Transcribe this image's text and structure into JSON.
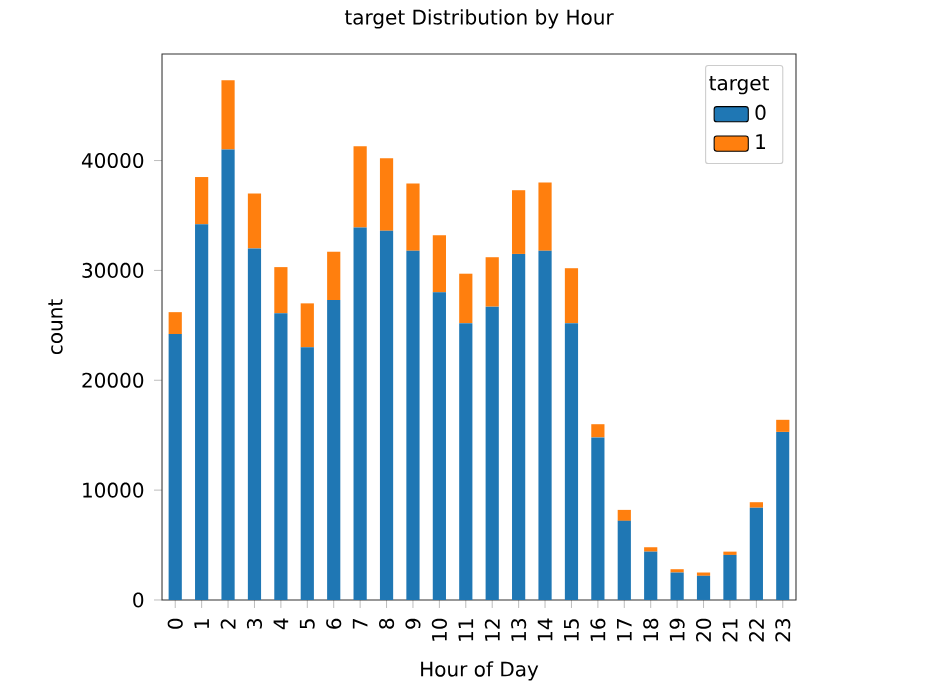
{
  "chart_data": {
    "type": "bar",
    "stacked": true,
    "title": "target Distribution by Hour",
    "xlabel": "Hour of Day",
    "ylabel": "count",
    "legend_title": "target",
    "legend": "top right",
    "categories": [
      "0",
      "1",
      "2",
      "3",
      "4",
      "5",
      "6",
      "7",
      "8",
      "9",
      "10",
      "11",
      "12",
      "13",
      "14",
      "15",
      "16",
      "17",
      "18",
      "19",
      "20",
      "21",
      "22",
      "23"
    ],
    "series": [
      {
        "name": "0",
        "color": "#1f77b4",
        "values": [
          24200,
          34200,
          41000,
          32000,
          26100,
          23000,
          27300,
          33900,
          33600,
          31800,
          28000,
          25200,
          26700,
          31500,
          31800,
          25200,
          14800,
          7200,
          4400,
          2500,
          2200,
          4100,
          8400,
          15300
        ]
      },
      {
        "name": "1",
        "color": "#ff7f0e",
        "values": [
          2000,
          4300,
          6300,
          5000,
          4200,
          4000,
          4400,
          7400,
          6600,
          6100,
          5200,
          4500,
          4500,
          5800,
          6200,
          5000,
          1200,
          1000,
          400,
          300,
          300,
          300,
          500,
          1100
        ]
      }
    ],
    "ylim": [
      0,
      49700
    ],
    "yticks": [
      0,
      10000,
      20000,
      30000,
      40000
    ]
  }
}
